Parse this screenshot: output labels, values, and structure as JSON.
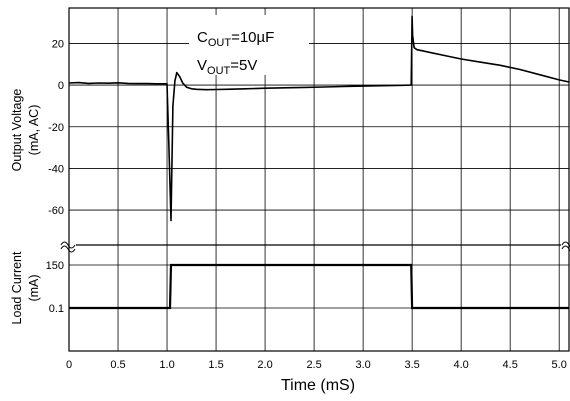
{
  "chart_data": {
    "type": "line",
    "xlabel": "Time (mS)",
    "x_ticks": [
      "0",
      "0.5",
      "1.0",
      "1.5",
      "2.0",
      "2.5",
      "3.0",
      "3.5",
      "4.0",
      "4.5",
      "5.0"
    ],
    "xlim": [
      0,
      5.1
    ],
    "annotation": {
      "cout": {
        "main": "C",
        "sub": "OUT",
        "rest": "=10µF"
      },
      "vout": {
        "main": "V",
        "sub": "OUT",
        "rest": "=5V"
      }
    },
    "grid": true,
    "panels": [
      {
        "name": "output-voltage",
        "ylabel_line1": "Output Voltage",
        "ylabel_line2": "(mA, AC)",
        "y_ticks": [
          "20",
          "0",
          "-20",
          "-40",
          "-60"
        ],
        "y_tick_values": [
          20,
          0,
          -20,
          -40,
          -60
        ],
        "ylim": [
          -71,
          37
        ],
        "series": [
          {
            "x": [
              0,
              0.1,
              0.2,
              0.3,
              0.4,
              0.5,
              0.6,
              0.7,
              0.8,
              0.9,
              1.0,
              1.02,
              1.04,
              1.06,
              1.08,
              1.1,
              1.13,
              1.16,
              1.2,
              1.25,
              1.3,
              1.4,
              1.5,
              1.6,
              1.8,
              2.0,
              2.2,
              2.4,
              2.6,
              2.8,
              3.0,
              3.2,
              3.4,
              3.49,
              3.5,
              3.505,
              3.52,
              3.55,
              3.6,
              3.7,
              3.8,
              4.0,
              4.2,
              4.4,
              4.6,
              4.8,
              5.0,
              5.1
            ],
            "y": [
              1,
              1.2,
              0.8,
              1,
              0.9,
              1.1,
              0.8,
              0.7,
              0.7,
              0.6,
              0.6,
              -31,
              -65,
              -10,
              2,
              6,
              4,
              1,
              -1,
              -1.8,
              -2,
              -2.2,
              -2.1,
              -2,
              -1.8,
              -1.5,
              -1.3,
              -1.1,
              -0.9,
              -0.7,
              -0.5,
              -0.3,
              -0.1,
              0,
              33,
              24,
              18,
              17,
              16.5,
              15.5,
              14.5,
              12.5,
              11,
              9.5,
              7.5,
              5,
              2.5,
              1.5
            ]
          }
        ]
      },
      {
        "name": "load-current",
        "ylabel_line1": "Load Current",
        "ylabel_line2": "(mA)",
        "y_ticks": [
          "150",
          "0.1"
        ],
        "y_tick_values": [
          150,
          0.1
        ],
        "series": [
          {
            "x": [
              0,
              1.03,
              1.04,
              3.49,
              3.5,
              5.1
            ],
            "y": [
              0.1,
              0.1,
              150,
              150,
              0.1,
              0.1
            ]
          }
        ]
      }
    ]
  }
}
